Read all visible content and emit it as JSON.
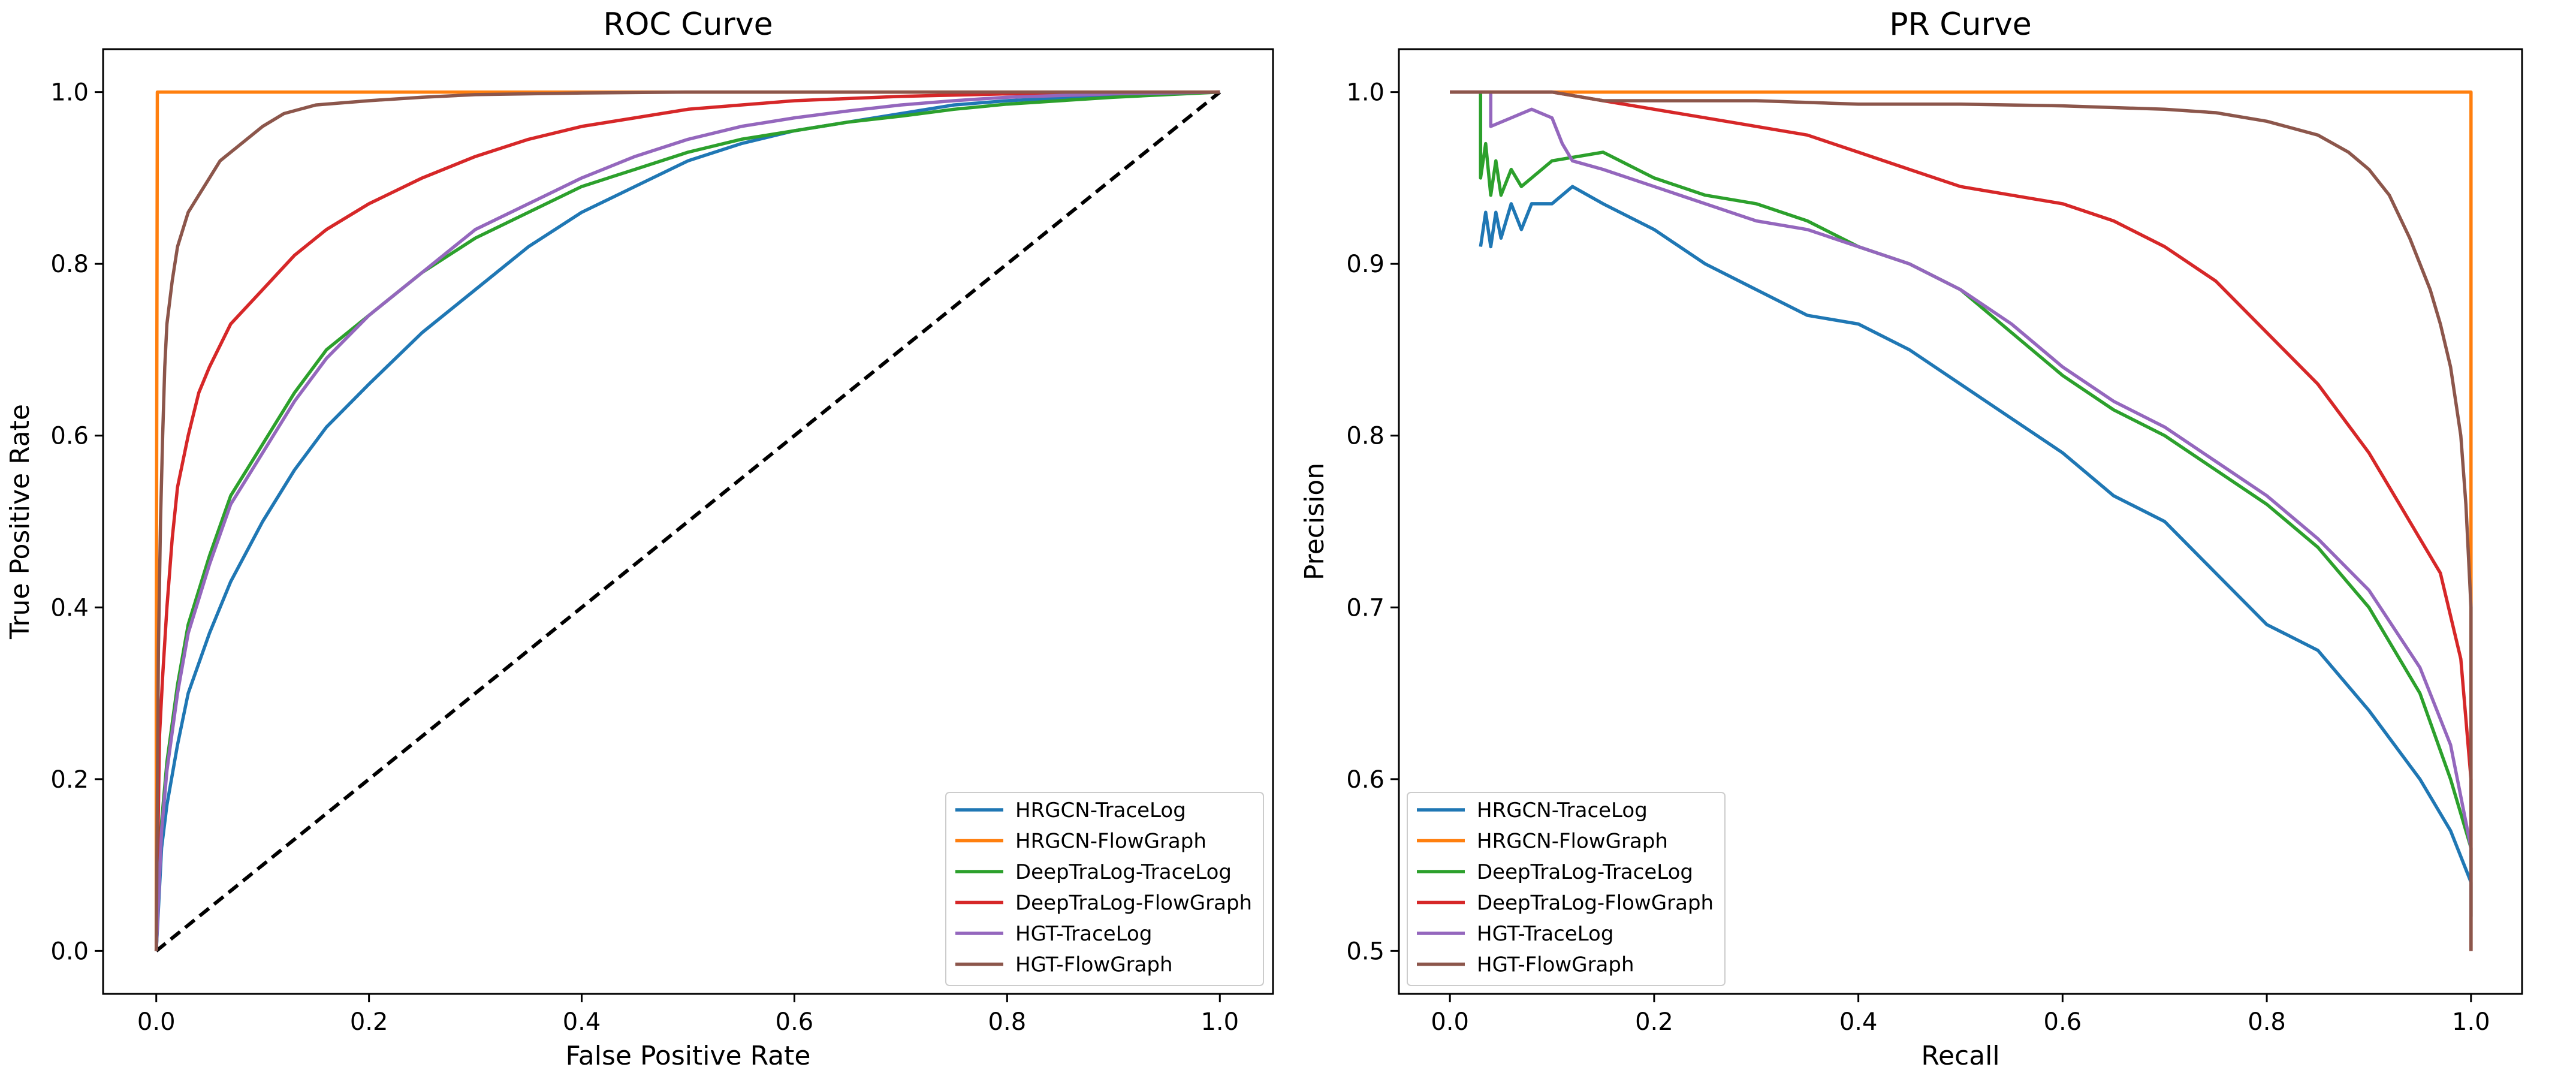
{
  "chart_data": [
    {
      "type": "line",
      "title": "ROC Curve",
      "xlabel": "False Positive Rate",
      "ylabel": "True Positive Rate",
      "xlim": [
        -0.05,
        1.05
      ],
      "ylim": [
        -0.05,
        1.05
      ],
      "xticks": [
        "0.0",
        "0.2",
        "0.4",
        "0.6",
        "0.8",
        "1.0"
      ],
      "yticks": [
        "0.0",
        "0.2",
        "0.4",
        "0.6",
        "0.8",
        "1.0"
      ],
      "legend_position": "lower-right",
      "reference_line": {
        "style": "dashed",
        "color": "#000000",
        "x": [
          0,
          1
        ],
        "y": [
          0,
          1
        ]
      },
      "series": [
        {
          "name": "HRGCN-TraceLog",
          "color": "#1f77b4",
          "x": [
            0,
            0.005,
            0.01,
            0.02,
            0.03,
            0.05,
            0.07,
            0.1,
            0.13,
            0.16,
            0.2,
            0.25,
            0.3,
            0.35,
            0.4,
            0.45,
            0.5,
            0.55,
            0.6,
            0.65,
            0.7,
            0.75,
            0.8,
            0.85,
            0.9,
            0.95,
            1.0
          ],
          "y": [
            0,
            0.12,
            0.17,
            0.24,
            0.3,
            0.37,
            0.43,
            0.5,
            0.56,
            0.61,
            0.66,
            0.72,
            0.77,
            0.82,
            0.86,
            0.89,
            0.92,
            0.94,
            0.955,
            0.965,
            0.975,
            0.985,
            0.99,
            0.993,
            0.996,
            0.998,
            1.0
          ]
        },
        {
          "name": "HRGCN-FlowGraph",
          "color": "#ff7f0e",
          "x": [
            0,
            0.0,
            0.001,
            0.02,
            0.2,
            0.6,
            1.0
          ],
          "y": [
            0,
            0.3,
            1.0,
            1.0,
            1.0,
            1.0,
            1.0
          ]
        },
        {
          "name": "DeepTraLog-TraceLog",
          "color": "#2ca02c",
          "x": [
            0,
            0.005,
            0.01,
            0.02,
            0.03,
            0.05,
            0.07,
            0.1,
            0.13,
            0.16,
            0.2,
            0.25,
            0.3,
            0.35,
            0.4,
            0.45,
            0.5,
            0.55,
            0.6,
            0.65,
            0.7,
            0.75,
            0.8,
            0.85,
            0.9,
            0.95,
            1.0
          ],
          "y": [
            0,
            0.15,
            0.22,
            0.31,
            0.38,
            0.46,
            0.53,
            0.59,
            0.65,
            0.7,
            0.74,
            0.79,
            0.83,
            0.86,
            0.89,
            0.91,
            0.93,
            0.945,
            0.955,
            0.965,
            0.972,
            0.98,
            0.986,
            0.99,
            0.994,
            0.997,
            1.0
          ]
        },
        {
          "name": "DeepTraLog-FlowGraph",
          "color": "#d62728",
          "x": [
            0,
            0.003,
            0.006,
            0.01,
            0.015,
            0.02,
            0.03,
            0.04,
            0.05,
            0.07,
            0.1,
            0.13,
            0.16,
            0.2,
            0.25,
            0.3,
            0.35,
            0.4,
            0.45,
            0.5,
            0.6,
            0.7,
            0.8,
            0.9,
            1.0
          ],
          "y": [
            0,
            0.25,
            0.32,
            0.4,
            0.48,
            0.54,
            0.6,
            0.65,
            0.68,
            0.73,
            0.77,
            0.81,
            0.84,
            0.87,
            0.9,
            0.925,
            0.945,
            0.96,
            0.97,
            0.98,
            0.99,
            0.995,
            0.998,
            0.999,
            1.0
          ]
        },
        {
          "name": "HGT-TraceLog",
          "color": "#9467bd",
          "x": [
            0,
            0.005,
            0.01,
            0.02,
            0.03,
            0.05,
            0.07,
            0.1,
            0.13,
            0.16,
            0.2,
            0.25,
            0.3,
            0.35,
            0.4,
            0.45,
            0.5,
            0.55,
            0.6,
            0.65,
            0.7,
            0.75,
            0.8,
            0.85,
            0.9,
            0.95,
            1.0
          ],
          "y": [
            0,
            0.14,
            0.21,
            0.3,
            0.37,
            0.45,
            0.52,
            0.58,
            0.64,
            0.69,
            0.74,
            0.79,
            0.84,
            0.87,
            0.9,
            0.925,
            0.945,
            0.96,
            0.97,
            0.978,
            0.985,
            0.99,
            0.994,
            0.996,
            0.998,
            0.999,
            1.0
          ]
        },
        {
          "name": "HGT-FlowGraph",
          "color": "#8c564b",
          "x": [
            0,
            0.002,
            0.004,
            0.006,
            0.008,
            0.01,
            0.015,
            0.02,
            0.03,
            0.04,
            0.05,
            0.06,
            0.08,
            0.1,
            0.12,
            0.15,
            0.2,
            0.25,
            0.3,
            0.4,
            0.5,
            0.7,
            1.0
          ],
          "y": [
            0,
            0.35,
            0.5,
            0.6,
            0.68,
            0.73,
            0.78,
            0.82,
            0.86,
            0.88,
            0.9,
            0.92,
            0.94,
            0.96,
            0.975,
            0.985,
            0.99,
            0.994,
            0.997,
            0.999,
            1.0,
            1.0,
            1.0
          ]
        }
      ]
    },
    {
      "type": "line",
      "title": "PR Curve",
      "xlabel": "Recall",
      "ylabel": "Precision",
      "xlim": [
        -0.05,
        1.05
      ],
      "ylim": [
        0.475,
        1.025
      ],
      "xticks": [
        "0.0",
        "0.2",
        "0.4",
        "0.6",
        "0.8",
        "1.0"
      ],
      "yticks": [
        "0.5",
        "0.6",
        "0.7",
        "0.8",
        "0.9",
        "1.0"
      ],
      "legend_position": "lower-left",
      "series": [
        {
          "name": "HRGCN-TraceLog",
          "color": "#1f77b4",
          "x": [
            0.03,
            0.035,
            0.04,
            0.045,
            0.05,
            0.06,
            0.07,
            0.08,
            0.1,
            0.12,
            0.15,
            0.2,
            0.25,
            0.3,
            0.35,
            0.4,
            0.45,
            0.5,
            0.55,
            0.6,
            0.65,
            0.7,
            0.75,
            0.8,
            0.85,
            0.9,
            0.95,
            0.98,
            1.0,
            1.0
          ],
          "y": [
            0.91,
            0.93,
            0.91,
            0.93,
            0.915,
            0.935,
            0.92,
            0.935,
            0.935,
            0.945,
            0.935,
            0.92,
            0.9,
            0.885,
            0.87,
            0.865,
            0.85,
            0.83,
            0.81,
            0.79,
            0.765,
            0.75,
            0.72,
            0.69,
            0.675,
            0.64,
            0.6,
            0.57,
            0.54,
            0.5
          ]
        },
        {
          "name": "HRGCN-FlowGraph",
          "color": "#ff7f0e",
          "x": [
            0.0,
            0.2,
            0.5,
            0.8,
            1.0,
            1.0
          ],
          "y": [
            1.0,
            1.0,
            1.0,
            1.0,
            1.0,
            0.5
          ]
        },
        {
          "name": "DeepTraLog-TraceLog",
          "color": "#2ca02c",
          "x": [
            0.03,
            0.03,
            0.035,
            0.04,
            0.045,
            0.05,
            0.06,
            0.07,
            0.1,
            0.15,
            0.2,
            0.25,
            0.3,
            0.35,
            0.4,
            0.45,
            0.5,
            0.55,
            0.6,
            0.65,
            0.7,
            0.75,
            0.8,
            0.85,
            0.9,
            0.95,
            0.98,
            1.0,
            1.0
          ],
          "y": [
            1.0,
            0.95,
            0.97,
            0.94,
            0.96,
            0.94,
            0.955,
            0.945,
            0.96,
            0.965,
            0.95,
            0.94,
            0.935,
            0.925,
            0.91,
            0.9,
            0.885,
            0.86,
            0.835,
            0.815,
            0.8,
            0.78,
            0.76,
            0.735,
            0.7,
            0.65,
            0.6,
            0.56,
            0.52
          ]
        },
        {
          "name": "DeepTraLog-FlowGraph",
          "color": "#d62728",
          "x": [
            0.0,
            0.1,
            0.15,
            0.2,
            0.25,
            0.3,
            0.35,
            0.4,
            0.45,
            0.5,
            0.55,
            0.6,
            0.65,
            0.7,
            0.75,
            0.8,
            0.85,
            0.9,
            0.93,
            0.95,
            0.97,
            0.99,
            1.0,
            1.0
          ],
          "y": [
            1.0,
            1.0,
            0.995,
            0.99,
            0.985,
            0.98,
            0.975,
            0.965,
            0.955,
            0.945,
            0.94,
            0.935,
            0.925,
            0.91,
            0.89,
            0.86,
            0.83,
            0.79,
            0.76,
            0.74,
            0.72,
            0.67,
            0.6,
            0.5
          ]
        },
        {
          "name": "HGT-TraceLog",
          "color": "#9467bd",
          "x": [
            0.0,
            0.04,
            0.04,
            0.06,
            0.08,
            0.1,
            0.11,
            0.12,
            0.15,
            0.2,
            0.25,
            0.3,
            0.35,
            0.4,
            0.45,
            0.5,
            0.55,
            0.6,
            0.65,
            0.7,
            0.75,
            0.8,
            0.85,
            0.9,
            0.95,
            0.98,
            1.0,
            1.0
          ],
          "y": [
            1.0,
            1.0,
            0.98,
            0.985,
            0.99,
            0.985,
            0.97,
            0.96,
            0.955,
            0.945,
            0.935,
            0.925,
            0.92,
            0.91,
            0.9,
            0.885,
            0.865,
            0.84,
            0.82,
            0.805,
            0.785,
            0.765,
            0.74,
            0.71,
            0.665,
            0.62,
            0.56,
            0.52
          ]
        },
        {
          "name": "HGT-FlowGraph",
          "color": "#8c564b",
          "x": [
            0.0,
            0.1,
            0.15,
            0.2,
            0.3,
            0.4,
            0.5,
            0.6,
            0.7,
            0.75,
            0.8,
            0.85,
            0.88,
            0.9,
            0.92,
            0.94,
            0.96,
            0.97,
            0.98,
            0.99,
            0.995,
            1.0,
            1.0
          ],
          "y": [
            1.0,
            1.0,
            0.995,
            0.995,
            0.995,
            0.993,
            0.993,
            0.992,
            0.99,
            0.988,
            0.983,
            0.975,
            0.965,
            0.955,
            0.94,
            0.915,
            0.885,
            0.865,
            0.84,
            0.8,
            0.76,
            0.7,
            0.5
          ]
        }
      ]
    }
  ]
}
